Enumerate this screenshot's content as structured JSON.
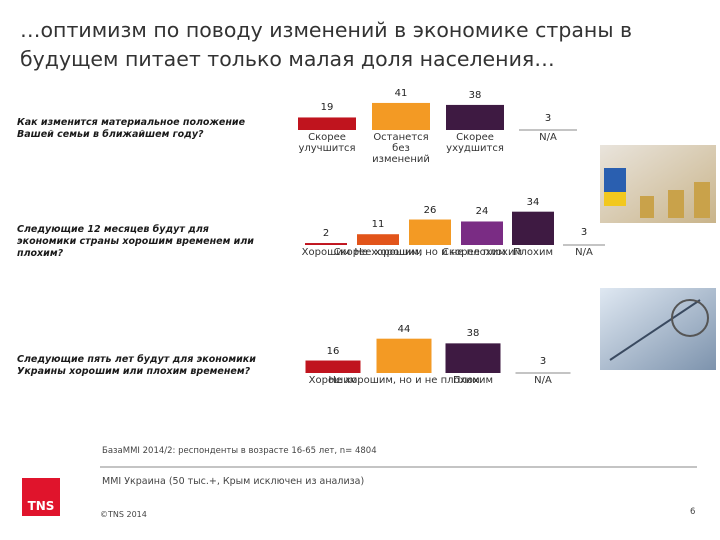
{
  "title_lines": [
    "…оптимизм по поводу изменений в экономике страны в",
    "будущем питает только малая доля населения…"
  ],
  "chart_data": [
    {
      "type": "bar",
      "question": "Как изменится материальное положение Вашей семьи в ближайшем году?",
      "categories": [
        "Скорее улучшится",
        "Останется без изменений",
        "Скорее ухудшится",
        "N/A"
      ],
      "values": [
        19,
        41,
        38,
        3
      ],
      "colors": [
        "#c0141e",
        "#f39a24",
        "#3e1a42",
        "#ffffff"
      ]
    },
    {
      "type": "bar",
      "question": "Следующие 12 месяцев будут для экономики страны хорошим временем или плохим?",
      "categories": [
        "Хорошим",
        "Скорее хорошим",
        "Не хорошим, но и не плохим",
        "Скорее плохим",
        "Плохим",
        "N/A"
      ],
      "values": [
        2,
        11,
        26,
        24,
        34,
        3
      ],
      "colors": [
        "#c0141e",
        "#e2541a",
        "#f39a24",
        "#7a2c84",
        "#3e1a42",
        "#ffffff"
      ]
    },
    {
      "type": "bar",
      "question": "Следующие пять лет будут для экономики Украины хорошим или плохим временем?",
      "categories": [
        "Хорошим",
        "Не хорошим, но и не плохим",
        "Плохим",
        "N/A"
      ],
      "values": [
        16,
        44,
        38,
        3
      ],
      "colors": [
        "#c0141e",
        "#f39a24",
        "#3e1a42",
        "#ffffff"
      ]
    }
  ],
  "footer": {
    "base": "БазаMMI 2014/2: респонденты в возрасте 16-65  лет, n= 4804",
    "source": "MMI Украина (50 тыс.+, Крым исключен из анализа)",
    "logo": "TNS",
    "copyright": "©TNS 2014",
    "page": "6"
  }
}
